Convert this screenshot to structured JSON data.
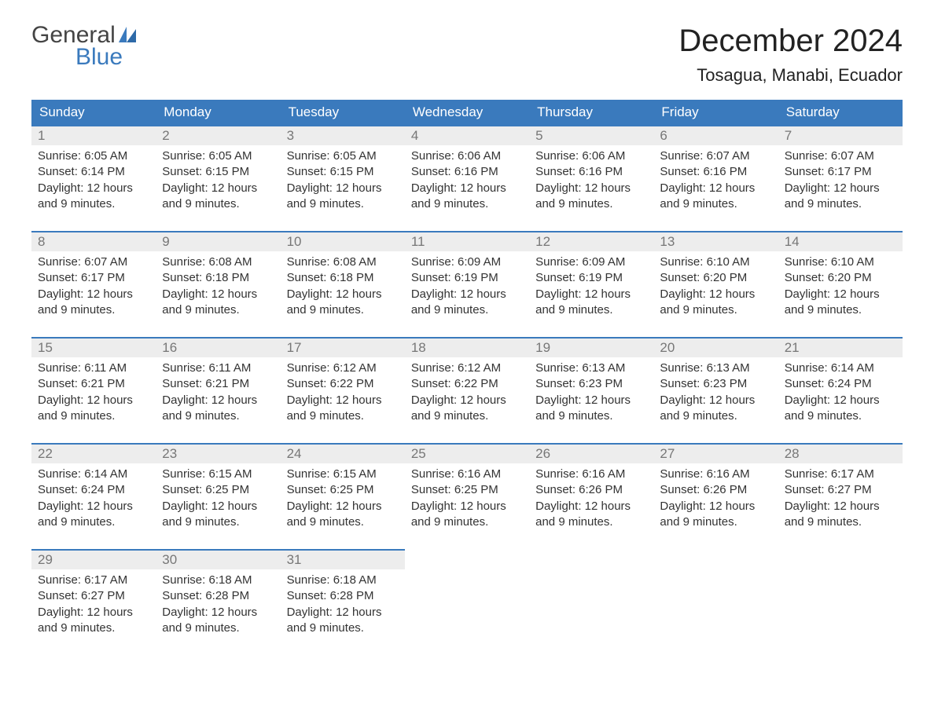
{
  "brand": {
    "top": "General",
    "bottom": "Blue"
  },
  "title": "December 2024",
  "location": "Tosagua, Manabi, Ecuador",
  "colors": {
    "header_bg": "#3a7abd",
    "header_text": "#ffffff",
    "day_border": "#3a7abd",
    "daynum_bg": "#ededed",
    "daynum_text": "#777777",
    "body_text": "#333333",
    "logo_gray": "#444444",
    "logo_blue": "#3a7abd"
  },
  "weekday_headers": [
    "Sunday",
    "Monday",
    "Tuesday",
    "Wednesday",
    "Thursday",
    "Friday",
    "Saturday"
  ],
  "weeks": [
    [
      {
        "n": "1",
        "sunrise": "Sunrise: 6:05 AM",
        "sunset": "Sunset: 6:14 PM",
        "d1": "Daylight: 12 hours",
        "d2": "and 9 minutes."
      },
      {
        "n": "2",
        "sunrise": "Sunrise: 6:05 AM",
        "sunset": "Sunset: 6:15 PM",
        "d1": "Daylight: 12 hours",
        "d2": "and 9 minutes."
      },
      {
        "n": "3",
        "sunrise": "Sunrise: 6:05 AM",
        "sunset": "Sunset: 6:15 PM",
        "d1": "Daylight: 12 hours",
        "d2": "and 9 minutes."
      },
      {
        "n": "4",
        "sunrise": "Sunrise: 6:06 AM",
        "sunset": "Sunset: 6:16 PM",
        "d1": "Daylight: 12 hours",
        "d2": "and 9 minutes."
      },
      {
        "n": "5",
        "sunrise": "Sunrise: 6:06 AM",
        "sunset": "Sunset: 6:16 PM",
        "d1": "Daylight: 12 hours",
        "d2": "and 9 minutes."
      },
      {
        "n": "6",
        "sunrise": "Sunrise: 6:07 AM",
        "sunset": "Sunset: 6:16 PM",
        "d1": "Daylight: 12 hours",
        "d2": "and 9 minutes."
      },
      {
        "n": "7",
        "sunrise": "Sunrise: 6:07 AM",
        "sunset": "Sunset: 6:17 PM",
        "d1": "Daylight: 12 hours",
        "d2": "and 9 minutes."
      }
    ],
    [
      {
        "n": "8",
        "sunrise": "Sunrise: 6:07 AM",
        "sunset": "Sunset: 6:17 PM",
        "d1": "Daylight: 12 hours",
        "d2": "and 9 minutes."
      },
      {
        "n": "9",
        "sunrise": "Sunrise: 6:08 AM",
        "sunset": "Sunset: 6:18 PM",
        "d1": "Daylight: 12 hours",
        "d2": "and 9 minutes."
      },
      {
        "n": "10",
        "sunrise": "Sunrise: 6:08 AM",
        "sunset": "Sunset: 6:18 PM",
        "d1": "Daylight: 12 hours",
        "d2": "and 9 minutes."
      },
      {
        "n": "11",
        "sunrise": "Sunrise: 6:09 AM",
        "sunset": "Sunset: 6:19 PM",
        "d1": "Daylight: 12 hours",
        "d2": "and 9 minutes."
      },
      {
        "n": "12",
        "sunrise": "Sunrise: 6:09 AM",
        "sunset": "Sunset: 6:19 PM",
        "d1": "Daylight: 12 hours",
        "d2": "and 9 minutes."
      },
      {
        "n": "13",
        "sunrise": "Sunrise: 6:10 AM",
        "sunset": "Sunset: 6:20 PM",
        "d1": "Daylight: 12 hours",
        "d2": "and 9 minutes."
      },
      {
        "n": "14",
        "sunrise": "Sunrise: 6:10 AM",
        "sunset": "Sunset: 6:20 PM",
        "d1": "Daylight: 12 hours",
        "d2": "and 9 minutes."
      }
    ],
    [
      {
        "n": "15",
        "sunrise": "Sunrise: 6:11 AM",
        "sunset": "Sunset: 6:21 PM",
        "d1": "Daylight: 12 hours",
        "d2": "and 9 minutes."
      },
      {
        "n": "16",
        "sunrise": "Sunrise: 6:11 AM",
        "sunset": "Sunset: 6:21 PM",
        "d1": "Daylight: 12 hours",
        "d2": "and 9 minutes."
      },
      {
        "n": "17",
        "sunrise": "Sunrise: 6:12 AM",
        "sunset": "Sunset: 6:22 PM",
        "d1": "Daylight: 12 hours",
        "d2": "and 9 minutes."
      },
      {
        "n": "18",
        "sunrise": "Sunrise: 6:12 AM",
        "sunset": "Sunset: 6:22 PM",
        "d1": "Daylight: 12 hours",
        "d2": "and 9 minutes."
      },
      {
        "n": "19",
        "sunrise": "Sunrise: 6:13 AM",
        "sunset": "Sunset: 6:23 PM",
        "d1": "Daylight: 12 hours",
        "d2": "and 9 minutes."
      },
      {
        "n": "20",
        "sunrise": "Sunrise: 6:13 AM",
        "sunset": "Sunset: 6:23 PM",
        "d1": "Daylight: 12 hours",
        "d2": "and 9 minutes."
      },
      {
        "n": "21",
        "sunrise": "Sunrise: 6:14 AM",
        "sunset": "Sunset: 6:24 PM",
        "d1": "Daylight: 12 hours",
        "d2": "and 9 minutes."
      }
    ],
    [
      {
        "n": "22",
        "sunrise": "Sunrise: 6:14 AM",
        "sunset": "Sunset: 6:24 PM",
        "d1": "Daylight: 12 hours",
        "d2": "and 9 minutes."
      },
      {
        "n": "23",
        "sunrise": "Sunrise: 6:15 AM",
        "sunset": "Sunset: 6:25 PM",
        "d1": "Daylight: 12 hours",
        "d2": "and 9 minutes."
      },
      {
        "n": "24",
        "sunrise": "Sunrise: 6:15 AM",
        "sunset": "Sunset: 6:25 PM",
        "d1": "Daylight: 12 hours",
        "d2": "and 9 minutes."
      },
      {
        "n": "25",
        "sunrise": "Sunrise: 6:16 AM",
        "sunset": "Sunset: 6:25 PM",
        "d1": "Daylight: 12 hours",
        "d2": "and 9 minutes."
      },
      {
        "n": "26",
        "sunrise": "Sunrise: 6:16 AM",
        "sunset": "Sunset: 6:26 PM",
        "d1": "Daylight: 12 hours",
        "d2": "and 9 minutes."
      },
      {
        "n": "27",
        "sunrise": "Sunrise: 6:16 AM",
        "sunset": "Sunset: 6:26 PM",
        "d1": "Daylight: 12 hours",
        "d2": "and 9 minutes."
      },
      {
        "n": "28",
        "sunrise": "Sunrise: 6:17 AM",
        "sunset": "Sunset: 6:27 PM",
        "d1": "Daylight: 12 hours",
        "d2": "and 9 minutes."
      }
    ],
    [
      {
        "n": "29",
        "sunrise": "Sunrise: 6:17 AM",
        "sunset": "Sunset: 6:27 PM",
        "d1": "Daylight: 12 hours",
        "d2": "and 9 minutes."
      },
      {
        "n": "30",
        "sunrise": "Sunrise: 6:18 AM",
        "sunset": "Sunset: 6:28 PM",
        "d1": "Daylight: 12 hours",
        "d2": "and 9 minutes."
      },
      {
        "n": "31",
        "sunrise": "Sunrise: 6:18 AM",
        "sunset": "Sunset: 6:28 PM",
        "d1": "Daylight: 12 hours",
        "d2": "and 9 minutes."
      },
      null,
      null,
      null,
      null
    ]
  ]
}
